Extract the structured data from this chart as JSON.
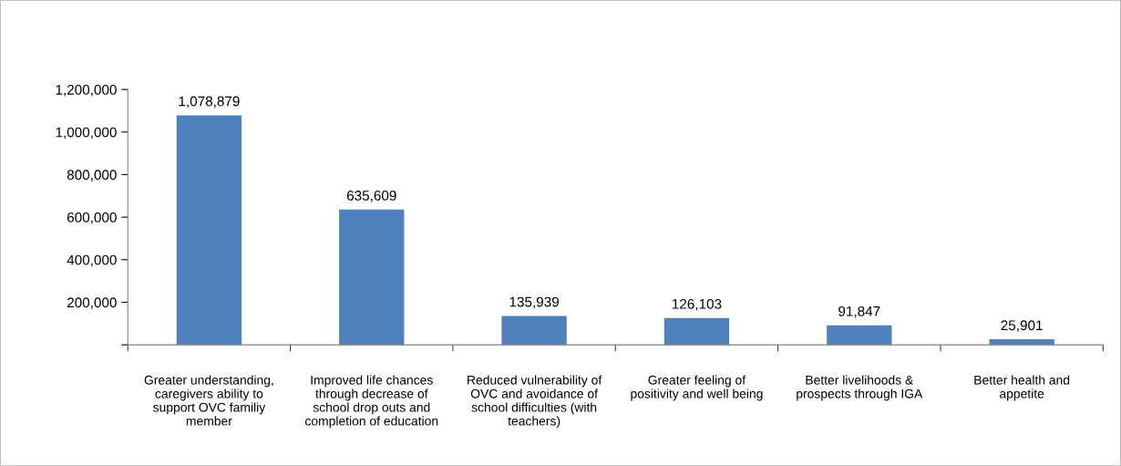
{
  "chart_data": {
    "type": "bar",
    "categories": [
      "Greater understanding,\ncaregivers ability to\nsupport OVC familiy\nmember",
      "Improved life chances\nthrough decrease of\nschool drop outs and\ncompletion of education",
      "Reduced vulnerability of\nOVC and avoidance of\nschool difficulties (with\nteachers)",
      "Greater feeling of\npositivity and well being",
      "Better livelihoods &\nprospects through IGA",
      "Better health and\nappetite"
    ],
    "values": [
      1078879,
      635609,
      135939,
      126103,
      91847,
      25901
    ],
    "color": "#4f81bd",
    "ylim": [
      0,
      1200000
    ],
    "yticks": [
      {
        "value": 0,
        "label": null
      },
      {
        "value": 200000,
        "label": "200,000"
      },
      {
        "value": 400000,
        "label": "400,000"
      },
      {
        "value": 600000,
        "label": "600,000"
      },
      {
        "value": 800000,
        "label": "800,000"
      },
      {
        "value": 1000000,
        "label": "1,000,000"
      },
      {
        "value": 1200000,
        "label": "1,200,000"
      }
    ],
    "value_labels": [
      "1,078,879",
      "635,609",
      "135,939",
      "126,103",
      "91,847",
      "25,901"
    ],
    "grid": false,
    "legend": false
  }
}
